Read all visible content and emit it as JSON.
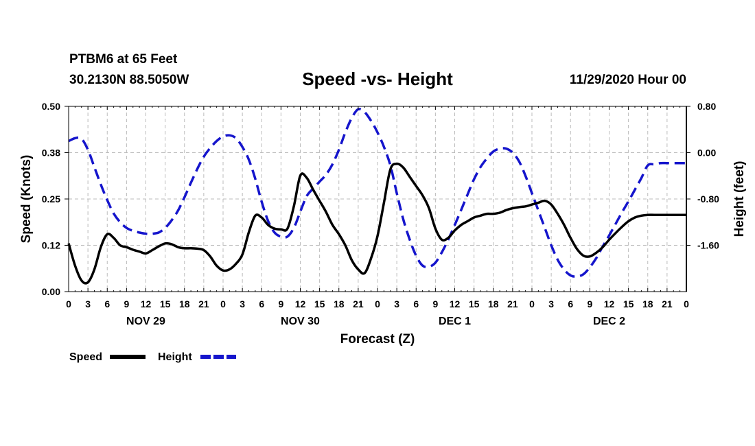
{
  "header": {
    "station": "PTBM6 at 65 Feet",
    "coords": "30.2130N 88.5050W",
    "title": "Speed -vs- Height",
    "run": "11/29/2020 Hour 00"
  },
  "colors": {
    "speed": "#000000",
    "height": "#1515cc",
    "grid": "#bbbbbb"
  },
  "chart_data": {
    "type": "line",
    "title": "Speed -vs- Height",
    "xlabel": "Forecast (Z)",
    "ylabel": "Speed (Knots)",
    "y2label": "Height (feet)",
    "x_unit": "hours since 11/29/2020 00Z",
    "xlim": [
      0,
      96
    ],
    "ylim": [
      0,
      0.5
    ],
    "y2lim": [
      -2.4,
      0.8
    ],
    "x_ticks": [
      0,
      3,
      6,
      9,
      12,
      15,
      18,
      21,
      24,
      27,
      30,
      33,
      36,
      39,
      42,
      45,
      48,
      51,
      54,
      57,
      60,
      63,
      66,
      69,
      72,
      75,
      78,
      81,
      84,
      87,
      90,
      93,
      96
    ],
    "x_tick_labels": [
      "0",
      "3",
      "6",
      "9",
      "12",
      "15",
      "18",
      "21",
      "0",
      "3",
      "6",
      "9",
      "12",
      "15",
      "18",
      "21",
      "0",
      "3",
      "6",
      "9",
      "12",
      "15",
      "18",
      "21",
      "0",
      "3",
      "6",
      "9",
      "12",
      "15",
      "18",
      "21",
      "0"
    ],
    "date_labels": [
      {
        "hour": 12,
        "label": "NOV 29"
      },
      {
        "hour": 36,
        "label": "NOV 30"
      },
      {
        "hour": 60,
        "label": "DEC 1"
      },
      {
        "hour": 84,
        "label": "DEC 2"
      }
    ],
    "y_ticks": [
      0,
      0.125,
      0.25,
      0.375,
      0.5
    ],
    "y_tick_labels": [
      "0.00",
      "0.12",
      "0.25",
      "0.38",
      "0.50"
    ],
    "y2_ticks": [
      -1.6,
      -0.8,
      0,
      0.8
    ],
    "y2_tick_labels": [
      "-1.60",
      "-0.80",
      "0.00",
      "0.80"
    ],
    "legend_position": "bottom-left",
    "series": [
      {
        "name": "Speed",
        "axis": "left",
        "style": "solid",
        "x": [
          0,
          1,
          2,
          3,
          4,
          5,
          6,
          7,
          8,
          9,
          10,
          11,
          12,
          13,
          14,
          15,
          16,
          17,
          18,
          19,
          20,
          21,
          22,
          23,
          24,
          25,
          26,
          27,
          28,
          29,
          30,
          31,
          32,
          33,
          34,
          35,
          36,
          37,
          38,
          39,
          40,
          41,
          42,
          43,
          44,
          45,
          46,
          47,
          48,
          49,
          50,
          51,
          52,
          53,
          54,
          55,
          56,
          57,
          58,
          59,
          60,
          61,
          62,
          63,
          64,
          65,
          66,
          67,
          68,
          69,
          70,
          71,
          72,
          73,
          74,
          75,
          76,
          77,
          78,
          79,
          80,
          81,
          82,
          83,
          84,
          85,
          86,
          87,
          88,
          89,
          90,
          91,
          92,
          93,
          94,
          95,
          96
        ],
        "y": [
          0.13,
          0.07,
          0.03,
          0.025,
          0.06,
          0.12,
          0.155,
          0.145,
          0.125,
          0.12,
          0.113,
          0.108,
          0.103,
          0.112,
          0.122,
          0.13,
          0.128,
          0.12,
          0.117,
          0.117,
          0.116,
          0.112,
          0.095,
          0.07,
          0.057,
          0.06,
          0.075,
          0.1,
          0.16,
          0.205,
          0.2,
          0.18,
          0.17,
          0.168,
          0.17,
          0.23,
          0.313,
          0.307,
          0.275,
          0.245,
          0.215,
          0.18,
          0.155,
          0.125,
          0.085,
          0.06,
          0.05,
          0.09,
          0.15,
          0.24,
          0.33,
          0.345,
          0.335,
          0.31,
          0.285,
          0.26,
          0.225,
          0.17,
          0.14,
          0.145,
          0.165,
          0.18,
          0.19,
          0.2,
          0.205,
          0.21,
          0.21,
          0.213,
          0.22,
          0.225,
          0.228,
          0.23,
          0.235,
          0.24,
          0.245,
          0.235,
          0.21,
          0.18,
          0.145,
          0.115,
          0.097,
          0.095,
          0.105,
          0.12,
          0.14,
          0.158,
          0.175,
          0.19,
          0.2,
          0.205,
          0.207,
          0.207,
          0.207,
          0.207,
          0.207,
          0.207,
          0.207
        ]
      },
      {
        "name": "Height",
        "axis": "right",
        "style": "dashed",
        "x": [
          0,
          1,
          2,
          3,
          4,
          5,
          6,
          7,
          8,
          9,
          10,
          11,
          12,
          13,
          14,
          15,
          16,
          17,
          18,
          19,
          20,
          21,
          22,
          23,
          24,
          25,
          26,
          27,
          28,
          29,
          30,
          31,
          32,
          33,
          34,
          35,
          36,
          37,
          38,
          39,
          40,
          41,
          42,
          43,
          44,
          45,
          46,
          47,
          48,
          49,
          50,
          51,
          52,
          53,
          54,
          55,
          56,
          57,
          58,
          59,
          60,
          61,
          62,
          63,
          64,
          65,
          66,
          67,
          68,
          69,
          70,
          71,
          72,
          73,
          74,
          75,
          76,
          77,
          78,
          79,
          80,
          81,
          82,
          83,
          84,
          85,
          86,
          87,
          88,
          89,
          90,
          91,
          92,
          93,
          94,
          95,
          96
        ],
        "y": [
          0.2,
          0.25,
          0.24,
          0.05,
          -0.25,
          -0.55,
          -0.82,
          -1.05,
          -1.2,
          -1.3,
          -1.35,
          -1.38,
          -1.4,
          -1.4,
          -1.38,
          -1.3,
          -1.17,
          -1.0,
          -0.77,
          -0.52,
          -0.28,
          -0.07,
          0.08,
          0.2,
          0.28,
          0.3,
          0.25,
          0.1,
          -0.12,
          -0.45,
          -0.85,
          -1.18,
          -1.38,
          -1.45,
          -1.45,
          -1.3,
          -1.02,
          -0.75,
          -0.62,
          -0.5,
          -0.38,
          -0.2,
          0.05,
          0.35,
          0.6,
          0.75,
          0.7,
          0.55,
          0.35,
          0.1,
          -0.22,
          -0.7,
          -1.15,
          -1.5,
          -1.78,
          -1.95,
          -1.97,
          -1.9,
          -1.72,
          -1.5,
          -1.25,
          -0.99,
          -0.72,
          -0.46,
          -0.25,
          -0.1,
          0.02,
          0.07,
          0.07,
          0.0,
          -0.15,
          -0.4,
          -0.7,
          -1.0,
          -1.3,
          -1.6,
          -1.85,
          -2.02,
          -2.12,
          -2.14,
          -2.1,
          -1.98,
          -1.82,
          -1.62,
          -1.43,
          -1.23,
          -1.03,
          -0.84,
          -0.64,
          -0.44,
          -0.22,
          -0.2,
          -0.18,
          -0.18,
          -0.18,
          -0.18,
          -0.18
        ]
      }
    ]
  }
}
